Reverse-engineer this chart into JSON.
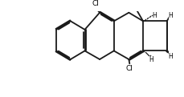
{
  "bg_color": "#ffffff",
  "bond_color": "#1a1a1a",
  "bond_lw": 1.3,
  "text_color": "#000000",
  "figsize": [
    2.3,
    1.21
  ],
  "dpi": 100,
  "xlim": [
    -0.5,
    9.5
  ],
  "ylim": [
    -0.3,
    5.3
  ]
}
